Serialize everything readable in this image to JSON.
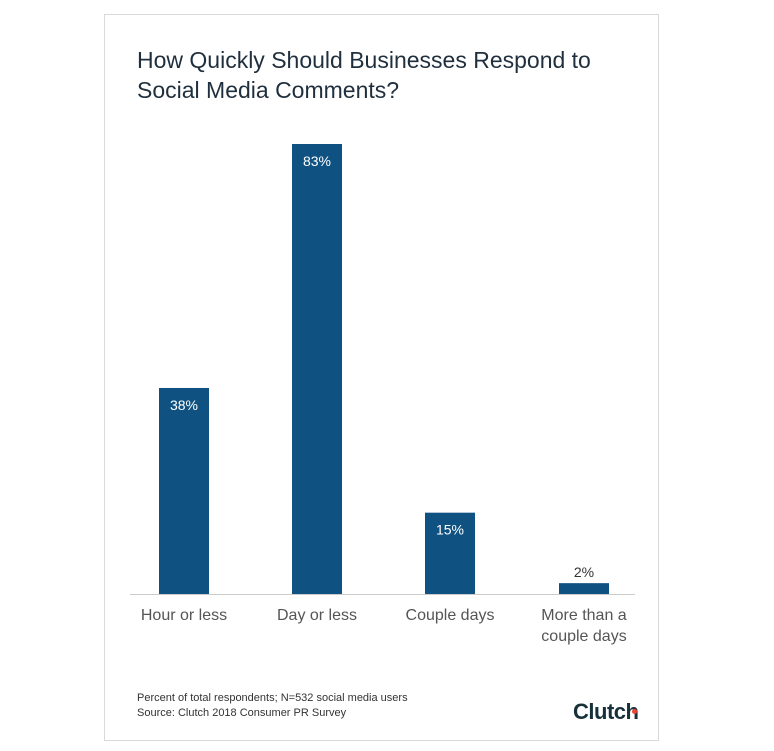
{
  "chart_data": {
    "type": "bar",
    "title": "How Quickly Should Businesses Respond to Social Media Comments?",
    "categories": [
      "Hour or less",
      "Day or less",
      "Couple days",
      "More than a couple days"
    ],
    "category_lines": [
      [
        "Hour or less"
      ],
      [
        "Day or less"
      ],
      [
        "Couple days"
      ],
      [
        "More than a",
        "couple days"
      ]
    ],
    "values": [
      38,
      83,
      15,
      2
    ],
    "value_labels": [
      "38%",
      "83%",
      "15%",
      "2%"
    ],
    "unit": "%",
    "ylim": [
      0,
      83
    ],
    "grid": false,
    "legend": "none",
    "colors": {
      "bar": "#0f5281",
      "baseline": "#cccccc",
      "label_inside": "#ffffff",
      "label_outside": "#333333",
      "axis_text": "#555555"
    }
  },
  "footnote": {
    "line1": "Percent of total respondents; N=532 social media users",
    "line2": "Source: Clutch 2018 Consumer PR Survey"
  },
  "logo": {
    "text": "Clutch",
    "accent_color": "#ef4335"
  }
}
